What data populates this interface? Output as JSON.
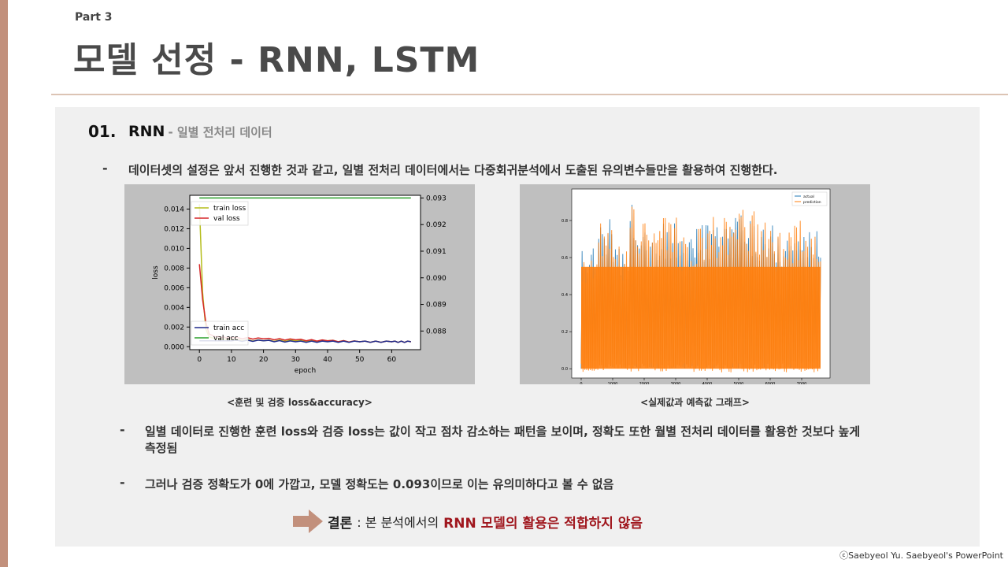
{
  "slide": {
    "part": "Part 3",
    "title": "모델 선정 - RNN, LSTM",
    "accent_color": "#c2907c",
    "copyright": "ⓒSaebyeol Yu. Saebyeol's PowerPoint"
  },
  "section": {
    "number": "01.",
    "title": "RNN",
    "subtitle": "- 일별 전처리 데이터"
  },
  "bullets": {
    "intro": "데이터셋의 설정은 앞서 진행한 것과 같고, 일별 전처리 데이터에서는 다중회귀분석에서 도출된 유의변수들만을 활용하여 진행한다.",
    "point1_line1": "일별 데이터로 진행한 훈련 loss와 검증 loss는 값이 작고 점차 감소하는 패턴을 보이며, 정확도 또한 월별 전처리 데이터를 활용한 것보다 높게",
    "point1_line2": "측정됨",
    "point2": "그러나 검증 정확도가 0에 가깝고, 모델 정확도는 0.093이므로 이는 유의미하다고 볼 수 없음",
    "dash": "-"
  },
  "figures": {
    "left_caption": "<훈련 및 검증 loss&accuracy>",
    "right_caption": "<실제값과 예측값 그래프>"
  },
  "conclusion": {
    "label": "결론",
    "prefix": ": 본 분석에서의",
    "highlight": "RNN 모델의 활용은 적합하지 않음",
    "highlight_color": "#a0171e"
  },
  "chart_data": [
    {
      "type": "line",
      "xlabel": "epoch",
      "ylabel": "loss",
      "xlim": [
        -3,
        69
      ],
      "xticks": [
        "0",
        "10",
        "20",
        "30",
        "40",
        "50",
        "60"
      ],
      "yticks_left": [
        "0.000",
        "0.002",
        "0.004",
        "0.006",
        "0.008",
        "0.010",
        "0.012",
        "0.014"
      ],
      "yticks_right": [
        "0.088",
        "0.089",
        "0.090",
        "0.091",
        "0.092",
        "0.093"
      ],
      "ylim_left": [
        -0.0003,
        0.0154
      ],
      "ylim_right": [
        0.0873,
        0.0931
      ],
      "legend_upper": [
        "train loss",
        "val loss"
      ],
      "legend_lower": [
        "train acc",
        "val acc"
      ],
      "legend_placement": [
        "upper-left",
        "lower-left"
      ],
      "series": [
        {
          "name": "train loss",
          "color": "#b5bd1c",
          "axis": "left",
          "x": [
            0,
            1,
            2,
            3,
            5,
            10,
            20,
            30,
            40,
            50,
            60,
            66
          ],
          "values": [
            0.0145,
            0.0055,
            0.0018,
            0.001,
            0.0008,
            0.0007,
            0.0006,
            0.0006,
            0.0006,
            0.0005,
            0.0005,
            0.0005
          ]
        },
        {
          "name": "val loss",
          "color": "#d62728",
          "axis": "left",
          "x": [
            0,
            1,
            2,
            3,
            5,
            10,
            20,
            30,
            40,
            50,
            60,
            66
          ],
          "values": [
            0.0084,
            0.0048,
            0.0025,
            0.0013,
            0.001,
            0.0009,
            0.0008,
            0.0007,
            0.0006,
            0.0005,
            0.0005,
            0.0005
          ]
        },
        {
          "name": "train acc",
          "color": "#1f2a8c",
          "axis": "left",
          "x": [
            0,
            10,
            20,
            30,
            40,
            50,
            60,
            66
          ],
          "values": [
            0.0006,
            0.0006,
            0.0006,
            0.0005,
            0.0005,
            0.0005,
            0.0005,
            0.0005
          ]
        },
        {
          "name": "val acc",
          "color": "#2ca02c",
          "axis": "right",
          "x": [
            0,
            66
          ],
          "values": [
            0.093,
            0.093
          ]
        }
      ]
    },
    {
      "type": "line",
      "xticks": [
        "0",
        "1000",
        "2000",
        "3000",
        "4000",
        "5000",
        "6000",
        "7000"
      ],
      "yticks": [
        "0.0",
        "0.2",
        "0.4",
        "0.6",
        "0.8"
      ],
      "xlim": [
        -300,
        7900
      ],
      "ylim": [
        -0.05,
        0.97
      ],
      "legend": [
        "actual",
        "prediction"
      ],
      "legend_placement": "upper-right",
      "series": [
        {
          "name": "actual",
          "color": "#1f77b4",
          "envelope_upper": [
            0.65,
            0.88,
            0.66,
            0.92,
            0.75,
            0.8,
            0.7,
            0.82,
            0.78,
            0.88,
            0.84,
            0.8,
            0.75,
            0.78,
            0.75
          ],
          "envelope_lower": [
            0.0,
            0.0,
            0.0,
            0.0,
            0.0,
            0.0,
            0.0,
            0.0,
            0.0,
            0.0,
            0.0,
            0.0,
            0.0,
            0.0,
            0.0
          ]
        },
        {
          "name": "prediction",
          "color": "#ff7f0e",
          "envelope_upper": [
            0.62,
            0.85,
            0.68,
            0.88,
            0.78,
            0.83,
            0.72,
            0.8,
            0.82,
            0.86,
            0.86,
            0.82,
            0.74,
            0.8,
            0.72
          ],
          "envelope_lower": [
            -0.02,
            -0.02,
            -0.02,
            -0.02,
            -0.02,
            -0.02,
            -0.02,
            -0.02,
            -0.02,
            -0.02,
            -0.02,
            -0.02,
            -0.02,
            -0.02,
            -0.02
          ]
        }
      ],
      "x_range": [
        0,
        7600
      ]
    }
  ]
}
